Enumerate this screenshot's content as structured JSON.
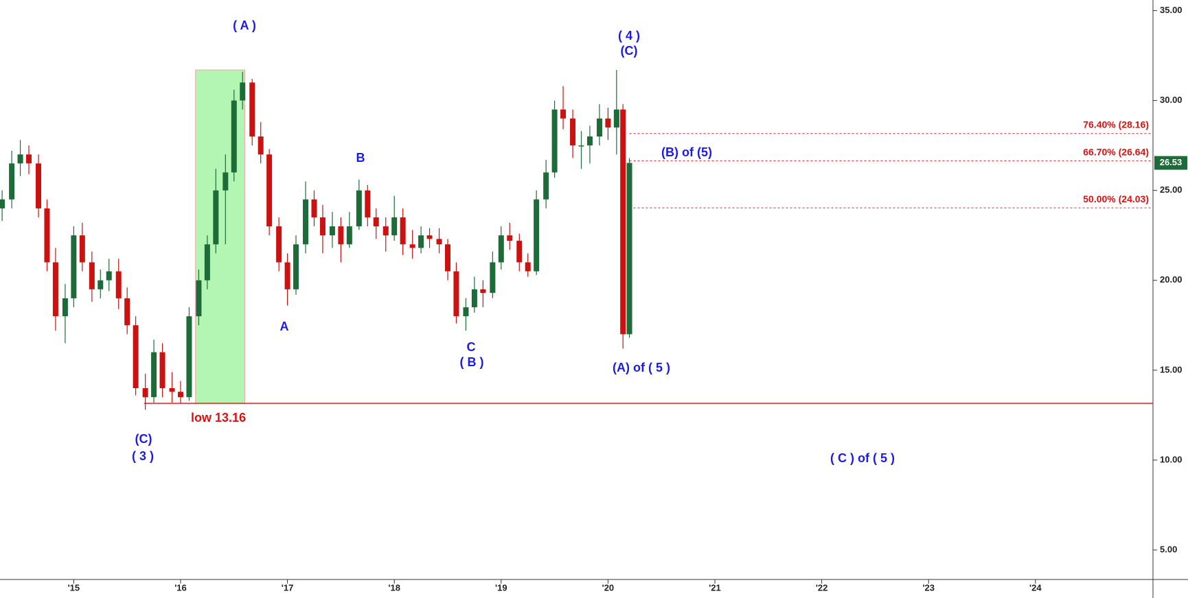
{
  "chart_data": {
    "type": "candlestick",
    "x": [
      2014.33,
      2014.42,
      2014.5,
      2014.58,
      2014.67,
      2014.75,
      2014.83,
      2014.92,
      2015.0,
      2015.08,
      2015.17,
      2015.25,
      2015.33,
      2015.42,
      2015.5,
      2015.58,
      2015.67,
      2015.75,
      2015.83,
      2015.92,
      2016.0,
      2016.08,
      2016.17,
      2016.25,
      2016.33,
      2016.42,
      2016.5,
      2016.58,
      2016.67,
      2016.75,
      2016.83,
      2016.92,
      2017.0,
      2017.08,
      2017.17,
      2017.25,
      2017.33,
      2017.42,
      2017.5,
      2017.58,
      2017.67,
      2017.75,
      2017.83,
      2017.92,
      2018.0,
      2018.08,
      2018.17,
      2018.25,
      2018.33,
      2018.42,
      2018.5,
      2018.58,
      2018.67,
      2018.75,
      2018.83,
      2018.92,
      2019.0,
      2019.08,
      2019.17,
      2019.25,
      2019.33,
      2019.42,
      2019.5,
      2019.58,
      2019.67,
      2019.75,
      2019.83,
      2019.92,
      2020.0,
      2020.08,
      2020.14,
      2020.2
    ],
    "open": [
      24.0,
      24.5,
      26.5,
      27,
      26.5,
      24,
      21,
      18,
      19,
      22.5,
      21,
      19.5,
      20,
      20.5,
      19,
      17.5,
      14,
      13.5,
      16,
      14,
      13.8,
      13.5,
      18,
      20,
      22,
      25,
      26,
      30,
      31,
      28,
      27,
      23,
      21,
      19.5,
      22,
      24.5,
      23.5,
      22.5,
      23,
      22,
      23,
      25,
      23.5,
      23,
      22.5,
      23.5,
      22,
      21.8,
      22.5,
      22.3,
      22,
      20.5,
      18,
      18.5,
      19.5,
      19.3,
      21,
      22.5,
      22.2,
      21,
      20.5,
      24.5,
      26,
      29.5,
      29,
      27.5,
      27.5,
      28,
      29,
      28.5,
      29.5,
      17
    ],
    "high": [
      25,
      27.2,
      27.8,
      27.5,
      27,
      24.5,
      21.8,
      19.8,
      23,
      23.2,
      21.6,
      20.6,
      21.2,
      21.2,
      19.6,
      18,
      14.8,
      16.7,
      16.5,
      14.9,
      14.4,
      18.5,
      20.6,
      22.5,
      26.2,
      27,
      30.6,
      31.6,
      31.2,
      28.8,
      27.3,
      23.5,
      21.5,
      22.5,
      25.5,
      25,
      24.2,
      23.8,
      23.5,
      23.8,
      25.6,
      25.3,
      24,
      23.5,
      24.7,
      24,
      22.8,
      23,
      22.9,
      22.9,
      22.3,
      21,
      19,
      20.2,
      20,
      21.6,
      23,
      23.2,
      22.6,
      21.5,
      25,
      26.7,
      30,
      30.8,
      29.5,
      28.3,
      28.6,
      29.8,
      29.6,
      31.7,
      29.8,
      26.8
    ],
    "low": [
      23.3,
      24,
      25.8,
      25.9,
      23.5,
      20.5,
      17.2,
      16.5,
      18.5,
      20.5,
      18.8,
      19,
      19.4,
      18.4,
      17,
      13.6,
      12.8,
      13.2,
      13.5,
      13.2,
      13.16,
      13.3,
      17.5,
      19.5,
      21.5,
      22,
      25.5,
      29.5,
      27.5,
      26.5,
      22.5,
      20.5,
      18.6,
      19.2,
      21.5,
      23,
      21.5,
      21.8,
      21,
      21.8,
      22.8,
      23,
      22.3,
      21.6,
      22.2,
      21.4,
      21.2,
      21.5,
      21.8,
      21.5,
      20,
      17.6,
      17.2,
      18.2,
      18.5,
      19,
      20.6,
      21.7,
      20.5,
      20.2,
      20.3,
      24,
      25.7,
      28.4,
      26.8,
      26.2,
      26.5,
      27.5,
      27.8,
      27,
      16.2,
      16.8
    ],
    "close": [
      24.5,
      26.5,
      27,
      26.5,
      24,
      21,
      18,
      19,
      22.5,
      21,
      19.5,
      20,
      20.5,
      19,
      17.5,
      14,
      13.5,
      16,
      14,
      13.8,
      13.5,
      18,
      20,
      22,
      25,
      26,
      30,
      31,
      28,
      27,
      23,
      21,
      19.5,
      22,
      24.5,
      23.5,
      22.5,
      23,
      22,
      23,
      25,
      23.5,
      23,
      22.5,
      23.5,
      22,
      21.8,
      22.5,
      22.3,
      22,
      20.5,
      18,
      18.5,
      19.5,
      19.3,
      21,
      22.5,
      22.2,
      21,
      20.5,
      24.5,
      26,
      29.5,
      29,
      27.5,
      27.5,
      28,
      29,
      28.5,
      29.5,
      17,
      26.53
    ],
    "up_color": "#1e6b3a",
    "down_color": "#cc1111",
    "last_price": 26.53,
    "xlim": [
      2014.31,
      2025.1
    ],
    "xticks": [
      {
        "value": 2015,
        "label": "'15"
      },
      {
        "value": 2016,
        "label": "'16"
      },
      {
        "value": 2017,
        "label": "'17"
      },
      {
        "value": 2018,
        "label": "'18"
      },
      {
        "value": 2019,
        "label": "'19"
      },
      {
        "value": 2020,
        "label": "'20"
      },
      {
        "value": 2021,
        "label": "'21"
      },
      {
        "value": 2022,
        "label": "'22"
      },
      {
        "value": 2023,
        "label": "'23"
      },
      {
        "value": 2024,
        "label": "'24"
      }
    ],
    "ylim": [
      3.36,
      35.59
    ],
    "yticks": [
      {
        "value": 5,
        "label": "5.00"
      },
      {
        "value": 10,
        "label": "10.00"
      },
      {
        "value": 15,
        "label": "15.00"
      },
      {
        "value": 20,
        "label": "20.00"
      },
      {
        "value": 25,
        "label": "25.00"
      },
      {
        "value": 30,
        "label": "30.00"
      },
      {
        "value": 35,
        "label": "35.00"
      }
    ],
    "fib_levels": [
      {
        "value": 28.16,
        "label": "76.40% (28.16)"
      },
      {
        "value": 26.64,
        "label": "66.70% (26.64)"
      },
      {
        "value": 24.03,
        "label": "50.00% (24.03)"
      }
    ],
    "support": {
      "value": 13.16,
      "label": "low 13.16"
    },
    "highlight": {
      "x": [
        2016.14,
        2016.6
      ],
      "y": [
        13.16,
        31.7
      ],
      "color": "#b3f5b3"
    },
    "annotations": [
      "( A )",
      "( 4 )",
      "(C)",
      "B",
      "(B) of (5)",
      "A",
      "C",
      "( B )",
      "(A) of ( 5 )",
      "(C)",
      "( 3 )",
      "( C ) of ( 5 )"
    ]
  }
}
